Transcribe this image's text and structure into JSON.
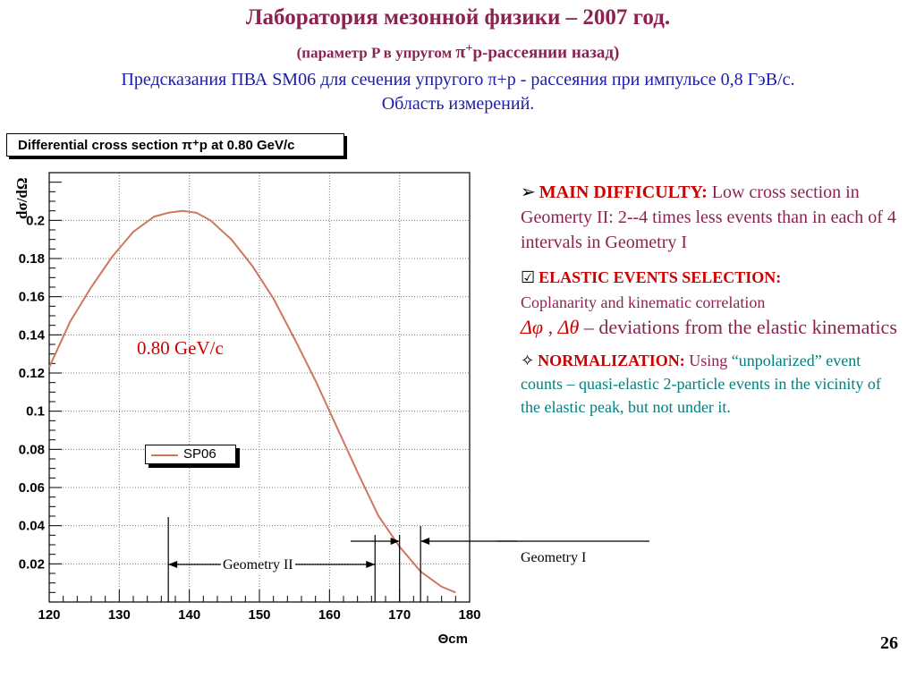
{
  "slide": {
    "title": "Лаборатория мезонной физики – 2007 год.",
    "subtitle_line": {
      "open": "(параметр P в упругом ",
      "pi": "π",
      "sup": "+",
      "rest": "p-рассеянии назад)"
    },
    "description": "Предсказания ПВА SM06 для сечения упругого π+p - рассеяния при импульсе 0,8 ГэВ/с. Область измерений.",
    "page_number": "26"
  },
  "chart_data": {
    "type": "line",
    "title": "Differential cross section π⁺p at 0.80 GeV/c",
    "xlabel": "Θcm",
    "ylabel": "dσ/dΩ",
    "xlim": [
      120,
      180
    ],
    "ylim": [
      0,
      0.225
    ],
    "x_ticks": [
      120,
      130,
      140,
      150,
      160,
      170,
      180
    ],
    "y_ticks": [
      0.02,
      0.04,
      0.06,
      0.08,
      0.1,
      0.12,
      0.14,
      0.16,
      0.18,
      0.2
    ],
    "grid": true,
    "legend_position": "center-left",
    "series": [
      {
        "name": "SP06",
        "color": "#cf7660",
        "x": [
          120,
          123,
          126,
          129,
          132,
          135,
          137,
          139,
          141,
          143,
          146,
          149,
          152,
          155,
          158,
          161,
          164,
          167,
          170,
          173,
          176,
          178
        ],
        "y": [
          0.123,
          0.147,
          0.165,
          0.181,
          0.194,
          0.202,
          0.204,
          0.205,
          0.204,
          0.2,
          0.19,
          0.176,
          0.159,
          0.138,
          0.116,
          0.092,
          0.068,
          0.045,
          0.029,
          0.016,
          0.008,
          0.005
        ]
      }
    ],
    "annotations": {
      "energy": "0.80 GeV/c",
      "geometry2": {
        "label": "Geometry II",
        "x_range": [
          137,
          166.5
        ]
      },
      "geometry1": {
        "label": "Geometry I",
        "x_range": [
          170,
          173
        ]
      }
    }
  },
  "info": {
    "difficulty": {
      "bullet": "➢",
      "header": "MAIN DIFFICULTY:",
      "text": " Low cross section in Geomerty II: 2--4 times less events than in each of 4 intervals in Geometry I"
    },
    "selection": {
      "bullet": "☑",
      "header": "ELASTIC EVENTS SELECTION:",
      "line2": "Coplanarity and kinematic correlation",
      "phi": "Δφ",
      "sep": " , ",
      "theta": "Δθ",
      "line3_rest": "  – deviations from the elastic kinematics"
    },
    "normalization": {
      "bullet": "✧",
      "header": "NORMALIZATION:",
      "text_plain": " Using ",
      "text_teal": "“unpolarized” event counts – quasi-elastic 2-particle events in the vicinity of the elastic peak, but not under it."
    }
  }
}
